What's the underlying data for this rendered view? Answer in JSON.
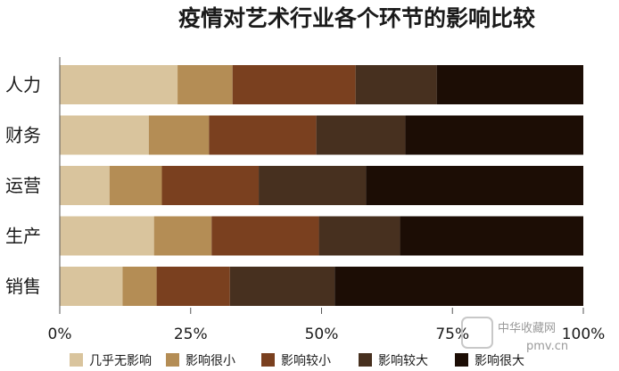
{
  "chart_data": {
    "type": "bar",
    "orientation": "horizontal",
    "stacked": true,
    "title": "疫情对艺术行业各个环节的影响比较",
    "categories": [
      "人力",
      "财务",
      "运营",
      "生产",
      "销售"
    ],
    "series": [
      {
        "name": "几乎无影响",
        "color": "#d9c49d",
        "values": [
          22.5,
          17,
          9.5,
          18,
          12
        ]
      },
      {
        "name": "影响很小",
        "color": "#b48d55",
        "values": [
          10.5,
          11.5,
          10,
          11,
          6.5
        ]
      },
      {
        "name": "影响较小",
        "color": "#7a401f",
        "values": [
          23.5,
          20.5,
          18.5,
          20.5,
          14
        ]
      },
      {
        "name": "影响较大",
        "color": "#47301f",
        "values": [
          15.5,
          17,
          20.5,
          15.5,
          20
        ]
      },
      {
        "name": "影响很大",
        "color": "#1c0d05",
        "values": [
          28,
          34,
          41.5,
          35,
          47.5
        ]
      }
    ],
    "xlim": [
      0,
      100
    ],
    "xticks": [
      "0%",
      "25%",
      "50%",
      "75%",
      "100%"
    ],
    "xlabel": "",
    "ylabel": "",
    "legend_position": "bottom",
    "grid": false
  },
  "watermark": {
    "text": "中华收藏网",
    "url": "pmv.cn"
  }
}
